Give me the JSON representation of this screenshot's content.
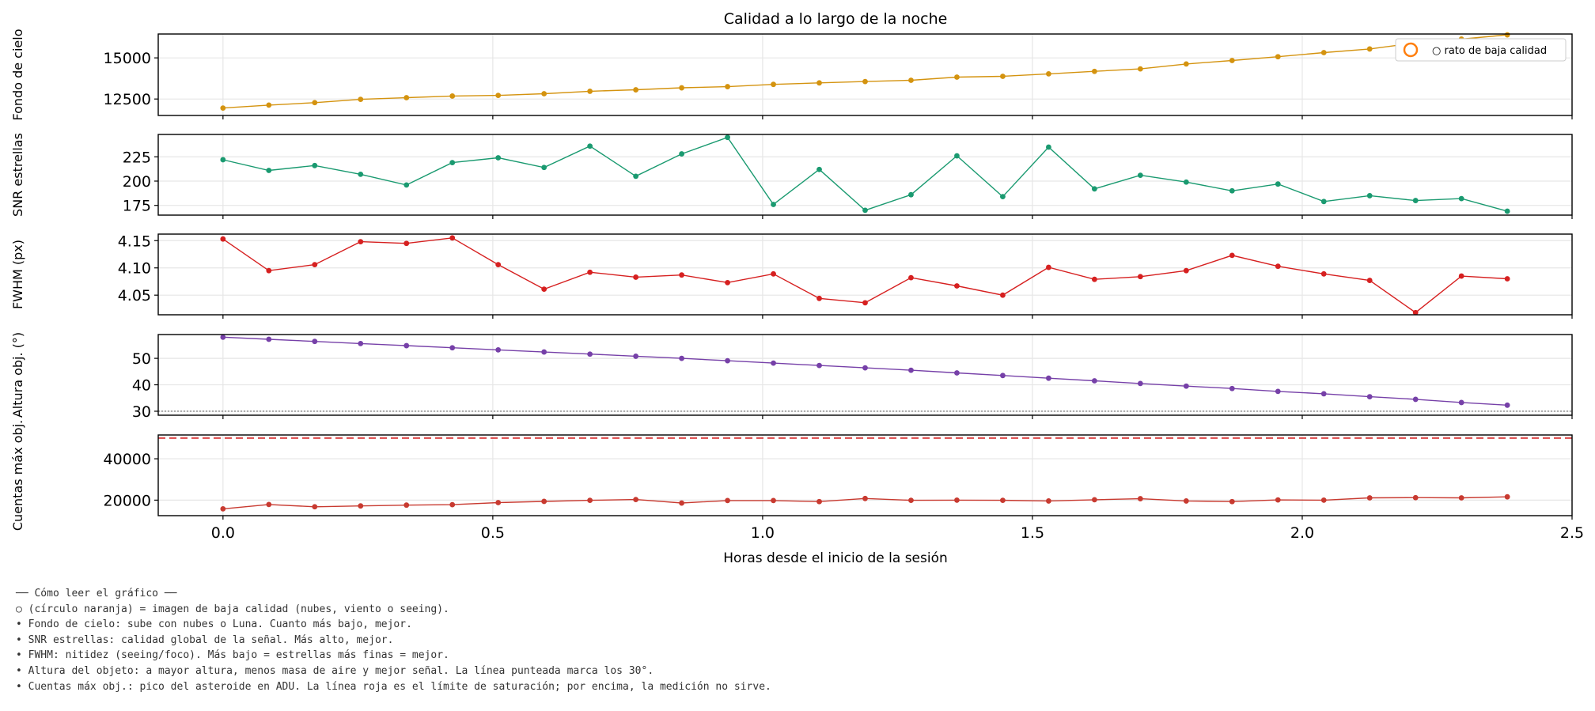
{
  "chart_data": {
    "type": "line",
    "title": "Calidad a lo largo de la noche",
    "xlabel": "Horas desde el inicio de la sesión",
    "xlim": [
      -0.12,
      2.5
    ],
    "xticks": [
      "0.0",
      "0.5",
      "1.0",
      "1.5",
      "2.0",
      "2.5"
    ],
    "grid": true,
    "x": [
      0.0,
      0.085,
      0.17,
      0.255,
      0.34,
      0.425,
      0.51,
      0.595,
      0.68,
      0.765,
      0.85,
      0.935,
      1.02,
      1.105,
      1.19,
      1.275,
      1.36,
      1.445,
      1.53,
      1.615,
      1.7,
      1.785,
      1.87,
      1.955,
      2.04,
      2.125,
      2.21,
      2.295,
      2.38
    ],
    "panels": [
      {
        "ylabel": "Fondo de cielo",
        "color": "#d4930f",
        "ylim": [
          11500,
          16450
        ],
        "yticks": [
          "12500",
          "15000"
        ],
        "values": [
          11950,
          12130,
          12280,
          12480,
          12580,
          12680,
          12720,
          12820,
          12970,
          13060,
          13180,
          13250,
          13390,
          13480,
          13560,
          13640,
          13830,
          13880,
          14030,
          14180,
          14330,
          14630,
          14840,
          15070,
          15320,
          15540,
          15910,
          16140,
          16400
        ],
        "legend": {
          "label": "○ rato de baja calidad",
          "marker_color": "#ff7f0e",
          "placement": "top-right"
        }
      },
      {
        "ylabel": "SNR estrellas",
        "color": "#1a9a70",
        "ylim": [
          165,
          248
        ],
        "yticks": [
          "175",
          "200",
          "225"
        ],
        "values": [
          222,
          211,
          216,
          207,
          196,
          219,
          224,
          214,
          236,
          205,
          228,
          245,
          176,
          212,
          170,
          186,
          226,
          184,
          235,
          192,
          206,
          199,
          190,
          197,
          179,
          185,
          180,
          182,
          169
        ]
      },
      {
        "ylabel": "FWHM (px)",
        "color": "#d62020",
        "ylim": [
          4.014,
          4.162
        ],
        "yticks": [
          "4.05",
          "4.10",
          "4.15"
        ],
        "values": [
          4.153,
          4.095,
          4.106,
          4.148,
          4.145,
          4.155,
          4.106,
          4.061,
          4.092,
          4.083,
          4.087,
          4.073,
          4.089,
          4.044,
          4.036,
          4.082,
          4.067,
          4.05,
          4.101,
          4.079,
          4.084,
          4.095,
          4.123,
          4.103,
          4.089,
          4.077,
          4.018,
          4.085,
          4.08
        ]
      },
      {
        "ylabel": "Altura obj. (°)",
        "color": "#7640a8",
        "ylim": [
          28.5,
          59
        ],
        "yticks": [
          "30",
          "40",
          "50"
        ],
        "hline": {
          "value": 30,
          "style": "dotted",
          "color": "#888888"
        },
        "values": [
          58,
          57.2,
          56.4,
          55.6,
          54.8,
          54,
          53.2,
          52.4,
          51.6,
          50.8,
          50,
          49.1,
          48.2,
          47.3,
          46.4,
          45.5,
          44.5,
          43.5,
          42.5,
          41.5,
          40.5,
          39.5,
          38.6,
          37.5,
          36.6,
          35.5,
          34.5,
          33.3,
          32.3
        ]
      },
      {
        "ylabel": "Cuentas máx obj.",
        "color": "#c83a30",
        "ylim": [
          12500,
          51500
        ],
        "yticks": [
          "20000",
          "40000"
        ],
        "hline": {
          "value": 50000,
          "style": "dashed",
          "color": "#d62728"
        },
        "values": [
          15800,
          17900,
          16800,
          17200,
          17600,
          17800,
          18800,
          19400,
          19900,
          20300,
          18600,
          19800,
          19800,
          19300,
          20800,
          19900,
          20000,
          19900,
          19600,
          20200,
          20700,
          19600,
          19300,
          20100,
          20000,
          21100,
          21200,
          21100,
          21600
        ]
      }
    ]
  },
  "notes": [
    "── Cómo leer el gráfico ──",
    "○ (círculo naranja) = imagen de baja calidad (nubes, viento o seeing).",
    "• Fondo de cielo: sube con nubes o Luna. Cuanto más bajo, mejor.",
    "• SNR estrellas: calidad global de la señal. Más alto, mejor.",
    "• FWHM: nitidez (seeing/foco). Más bajo = estrellas más finas = mejor.",
    "• Altura del objeto: a mayor altura, menos masa de aire y mejor señal. La línea punteada marca los 30°.",
    "• Cuentas máx obj.: pico del asteroide en ADU. La línea roja es el límite de saturación; por encima, la medición no sirve."
  ]
}
